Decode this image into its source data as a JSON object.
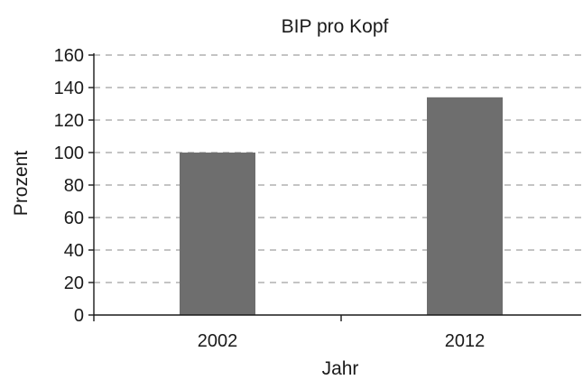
{
  "chart_data": {
    "type": "bar",
    "title": "BIP pro Kopf",
    "xlabel": "Jahr",
    "ylabel": "Prozent",
    "categories": [
      "2002",
      "2012"
    ],
    "values": [
      100,
      134
    ],
    "ylim": [
      0,
      160
    ],
    "yticks": [
      0,
      20,
      40,
      60,
      80,
      100,
      120,
      140,
      160
    ],
    "grid": "horizontal dashed",
    "legend": "none",
    "bar_color": "#6e6e6e"
  }
}
